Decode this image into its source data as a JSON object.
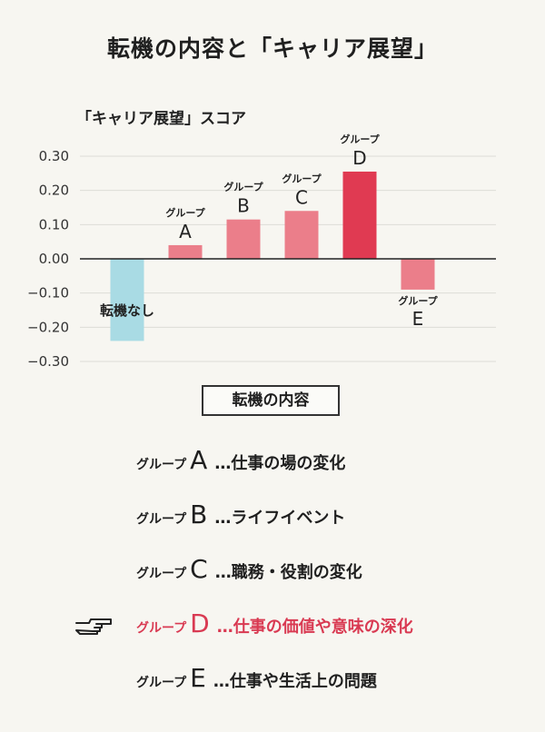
{
  "title": "転機の内容と「キャリア展望」",
  "x_axis_label": "転機の内容",
  "legend": [
    {
      "group": "グループ",
      "letter": "A",
      "desc": "…仕事の場の変化",
      "highlight": false
    },
    {
      "group": "グループ",
      "letter": "B",
      "desc": "…ライフイベント",
      "highlight": false
    },
    {
      "group": "グループ",
      "letter": "C",
      "desc": "…職務・役割の変化",
      "highlight": false
    },
    {
      "group": "グループ",
      "letter": "D",
      "desc": "…仕事の価値や意味の深化",
      "highlight": true
    },
    {
      "group": "グループ",
      "letter": "E",
      "desc": "…仕事や生活上の問題",
      "highlight": false
    }
  ],
  "pointer_icon": "pointing-hand-icon",
  "colors": {
    "background": "#f7f6f1",
    "none_bar": "#a9dbe4",
    "group_bar": "#eb7e8a",
    "highlight_bar": "#e03a52",
    "highlight_text": "#d93a52"
  },
  "chart_data": {
    "type": "bar",
    "ylabel": "「キャリア展望」スコア",
    "xlabel": "転機の内容",
    "ylim": [
      -0.3,
      0.3
    ],
    "yticks": [
      "0.30",
      "0.20",
      "0.10",
      "0.00",
      "−0.10",
      "−0.20",
      "−0.30"
    ],
    "grid": true,
    "categories": [
      {
        "label": "転機なし",
        "small": "",
        "letter": "",
        "value": -0.24,
        "color": "#a9dbe4"
      },
      {
        "label": "グループ A",
        "small": "グループ",
        "letter": "A",
        "value": 0.04,
        "color": "#eb7e8a"
      },
      {
        "label": "グループ B",
        "small": "グループ",
        "letter": "B",
        "value": 0.115,
        "color": "#eb7e8a"
      },
      {
        "label": "グループ C",
        "small": "グループ",
        "letter": "C",
        "value": 0.14,
        "color": "#eb7e8a"
      },
      {
        "label": "グループ D",
        "small": "グループ",
        "letter": "D",
        "value": 0.255,
        "color": "#e03a52"
      },
      {
        "label": "グループ E",
        "small": "グループ",
        "letter": "E",
        "value": -0.09,
        "color": "#eb7e8a"
      }
    ]
  }
}
